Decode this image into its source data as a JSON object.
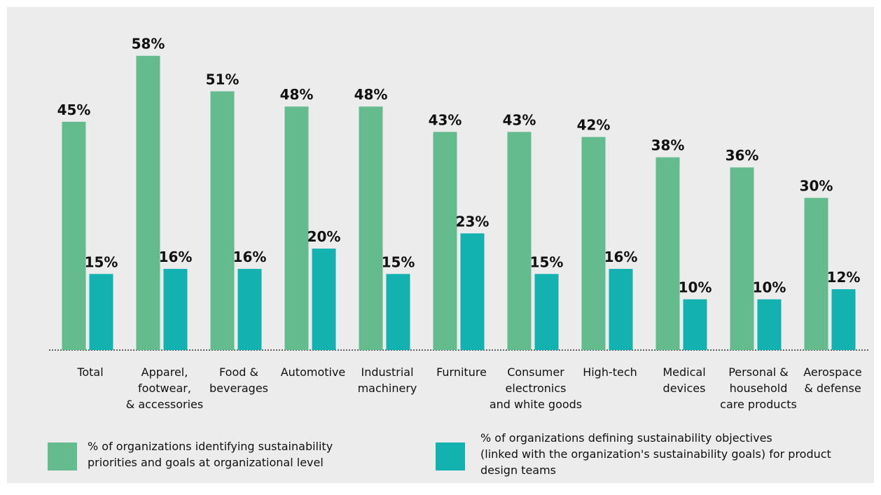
{
  "chart_data": {
    "type": "bar",
    "categories": [
      "Total",
      "Apparel,\nfootwear,\n& accessories",
      "Food &\nbeverages",
      "Automotive",
      "Industrial\nmachinery",
      "Furniture",
      "Consumer\nelectronics\nand white goods",
      "High-tech",
      "Medical\ndevices",
      "Personal &\nhousehold\ncare products",
      "Aerospace\n& defense"
    ],
    "series": [
      {
        "name": "% of organizations identifying sustainability\npriorities and goals at organizational level",
        "color": "#63bb8e",
        "values": [
          45,
          58,
          51,
          48,
          48,
          43,
          43,
          42,
          38,
          36,
          30
        ],
        "value_labels": [
          "45%",
          "58%",
          "51%",
          "48%",
          "48%",
          "43%",
          "43%",
          "42%",
          "38%",
          "36%",
          "30%"
        ]
      },
      {
        "name": "% of organizations defining sustainability objectives\n(linked with the organization's sustainability goals) for product\ndesign teams",
        "color": "#13b2b0",
        "values": [
          15,
          16,
          16,
          20,
          15,
          23,
          15,
          16,
          10,
          10,
          12
        ],
        "value_labels": [
          "15%",
          "16%",
          "16%",
          "20%",
          "15%",
          "23%",
          "15%",
          "16%",
          "10%",
          "10%",
          "12%"
        ]
      }
    ],
    "ylim": [
      0,
      65
    ]
  }
}
